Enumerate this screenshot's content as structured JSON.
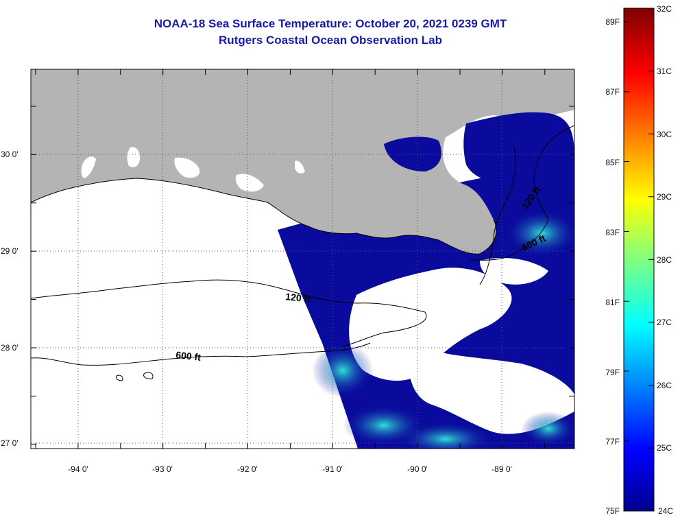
{
  "header": {
    "title": "NOAA-18 Sea Surface Temperature:  October 20, 2021 0239 GMT",
    "subtitle": "Rutgers Coastal Ocean Observation Lab"
  },
  "map": {
    "lat_labels": [
      "30 0'",
      "29 0'",
      "28 0'",
      "27 0'"
    ],
    "lon_labels": [
      "-94 0'",
      "-93 0'",
      "-92 0'",
      "-91 0'",
      "-90 0'",
      "-89 0'"
    ],
    "contour_labels": [
      "120 ft",
      "600 ft",
      "120 ft",
      "600 ft"
    ],
    "colors": {
      "land": "#b4b4b4",
      "ocean_cold": "#0a0a9c",
      "cloud": "#ffffff"
    }
  },
  "colorbar": {
    "celsius_labels": [
      "32C",
      "31C",
      "30C",
      "29C",
      "28C",
      "27C",
      "26C",
      "25C",
      "24C"
    ],
    "fahrenheit_labels": [
      "89F",
      "87F",
      "85F",
      "83F",
      "81F",
      "79F",
      "77F",
      "75F"
    ],
    "range_celsius": [
      24,
      32
    ],
    "colormap": "jet"
  }
}
